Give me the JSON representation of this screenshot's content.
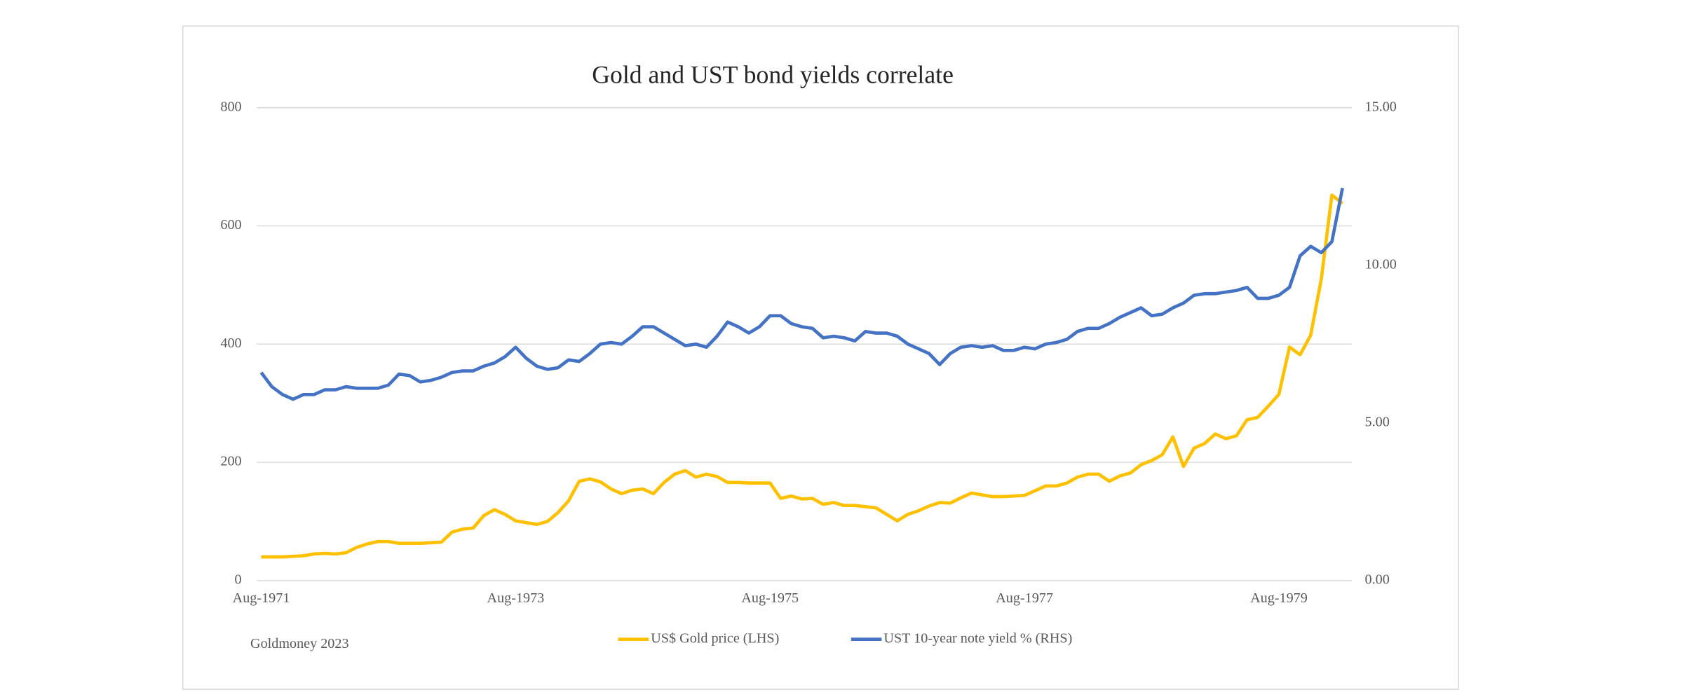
{
  "chart_data": {
    "type": "line",
    "title": "Gold and UST bond yields correlate",
    "source": "Goldmoney 2023",
    "categories": [
      "Aug-1971",
      null,
      null,
      null,
      null,
      null,
      null,
      null,
      null,
      null,
      null,
      null,
      null,
      null,
      null,
      null,
      null,
      null,
      null,
      null,
      null,
      null,
      null,
      null,
      "Aug-1973",
      null,
      null,
      null,
      null,
      null,
      null,
      null,
      null,
      null,
      null,
      null,
      null,
      null,
      null,
      null,
      null,
      null,
      null,
      null,
      null,
      null,
      null,
      null,
      "Aug-1975",
      null,
      null,
      null,
      null,
      null,
      null,
      null,
      null,
      null,
      null,
      null,
      null,
      null,
      null,
      null,
      null,
      null,
      null,
      null,
      null,
      null,
      null,
      null,
      "Aug-1977",
      null,
      null,
      null,
      null,
      null,
      null,
      null,
      null,
      null,
      null,
      null,
      null,
      null,
      null,
      null,
      null,
      null,
      null,
      null,
      null,
      null,
      null,
      null,
      "Aug-1979",
      null,
      null,
      null,
      null,
      null,
      null
    ],
    "series": [
      {
        "name": "US$ Gold price (LHS)",
        "color": "#FFC000",
        "axis": "y",
        "values": [
          40,
          40,
          40,
          41,
          42,
          45,
          46,
          45,
          47,
          56,
          62,
          66,
          66,
          63,
          63,
          63,
          64,
          65,
          82,
          87,
          89,
          110,
          120,
          112,
          101,
          98,
          95,
          100,
          115,
          135,
          168,
          172,
          167,
          155,
          147,
          153,
          155,
          147,
          166,
          180,
          186,
          175,
          180,
          176,
          166,
          166,
          165,
          165,
          165,
          139,
          143,
          138,
          139,
          129,
          132,
          127,
          127,
          125,
          123,
          112,
          101,
          112,
          118,
          126,
          132,
          131,
          140,
          148,
          145,
          142,
          142,
          143,
          144,
          152,
          160,
          160,
          165,
          175,
          180,
          180,
          168,
          177,
          182,
          196,
          203,
          213,
          243,
          193,
          224,
          232,
          248,
          240,
          245,
          272,
          276,
          295,
          315,
          395,
          382,
          415,
          510,
          652,
          638
        ]
      },
      {
        "name": "UST 10-year note yield % (RHS)",
        "color": "#4472C4",
        "axis": "y2",
        "values": [
          6.6,
          6.15,
          5.9,
          5.75,
          5.9,
          5.9,
          6.05,
          6.05,
          6.15,
          6.1,
          6.1,
          6.1,
          6.2,
          6.55,
          6.5,
          6.3,
          6.35,
          6.45,
          6.6,
          6.65,
          6.65,
          6.8,
          6.9,
          7.1,
          7.4,
          7.05,
          6.8,
          6.7,
          6.75,
          7.0,
          6.95,
          7.2,
          7.5,
          7.55,
          7.5,
          7.75,
          8.05,
          8.05,
          7.85,
          7.65,
          7.45,
          7.5,
          7.4,
          7.75,
          8.2,
          8.05,
          7.85,
          8.05,
          8.4,
          8.4,
          8.15,
          8.05,
          8.0,
          7.7,
          7.75,
          7.7,
          7.6,
          7.9,
          7.85,
          7.85,
          7.75,
          7.5,
          7.35,
          7.2,
          6.85,
          7.2,
          7.4,
          7.45,
          7.4,
          7.45,
          7.3,
          7.3,
          7.4,
          7.35,
          7.5,
          7.55,
          7.65,
          7.9,
          8.0,
          8.0,
          8.15,
          8.35,
          8.5,
          8.65,
          8.4,
          8.45,
          8.65,
          8.8,
          9.05,
          9.1,
          9.1,
          9.15,
          9.2,
          9.3,
          8.95,
          8.95,
          9.05,
          9.3,
          10.3,
          10.6,
          10.4,
          10.75,
          12.45
        ]
      }
    ],
    "ylim": [
      0,
      800
    ],
    "yticks": [
      0,
      200,
      400,
      600,
      800
    ],
    "y2lim": [
      0,
      15
    ],
    "y2ticks": [
      {
        "value": 0,
        "label": "0.00"
      },
      {
        "value": 5,
        "label": "5.00"
      },
      {
        "value": 10,
        "label": "10.00"
      },
      {
        "value": 15,
        "label": "15.00"
      }
    ],
    "grid": true,
    "legend": "bottom"
  }
}
